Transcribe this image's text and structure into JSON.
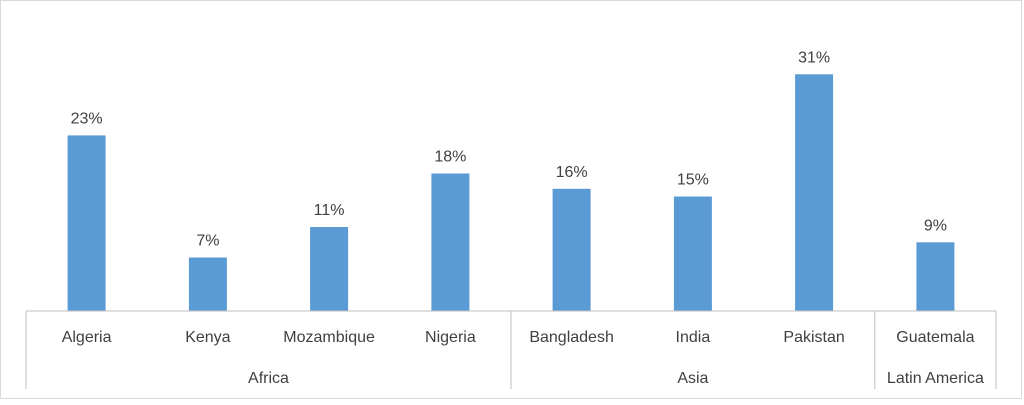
{
  "chart_data": {
    "type": "bar",
    "title": "",
    "xlabel": "",
    "ylabel": "",
    "ylim": [
      0,
      33
    ],
    "grid": false,
    "legend": "none",
    "bar_color": "#5b9bd5",
    "categories": [
      "Algeria",
      "Kenya",
      "Mozambique",
      "Nigeria",
      "Bangladesh",
      "India",
      "Pakistan",
      "Guatemala"
    ],
    "values": [
      23,
      7,
      11,
      18,
      16,
      15,
      31,
      9
    ],
    "value_labels": [
      "23%",
      "7%",
      "11%",
      "18%",
      "16%",
      "15%",
      "31%",
      "9%"
    ],
    "groups": [
      {
        "name": "Africa",
        "count": 4
      },
      {
        "name": "Asia",
        "count": 3
      },
      {
        "name": "Latin America",
        "count": 1
      }
    ]
  }
}
